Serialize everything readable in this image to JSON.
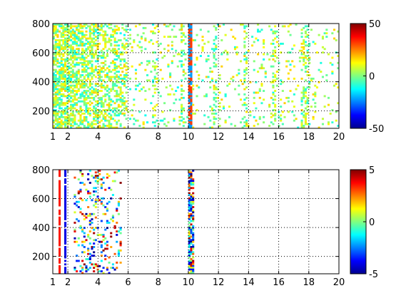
{
  "chart_data": [
    {
      "type": "heatmap",
      "title": "",
      "xlabel": "",
      "ylabel": "",
      "xlim": [
        1,
        20
      ],
      "ylim": [
        80,
        800
      ],
      "grid": true,
      "x_ticks": [
        "1",
        "2",
        "4",
        "6",
        "8",
        "10",
        "12",
        "14",
        "16",
        "18",
        "20"
      ],
      "y_ticks": [
        "200",
        "400",
        "600",
        "800"
      ],
      "colorbar": {
        "range": [
          -50,
          50
        ],
        "ticks": [
          "50",
          "0",
          "-50"
        ]
      },
      "dense_region_x": [
        1,
        6
      ],
      "strong_band_x": 10.1
    },
    {
      "type": "heatmap",
      "title": "",
      "xlabel": "",
      "ylabel": "",
      "xlim": [
        1,
        20
      ],
      "ylim": [
        80,
        800
      ],
      "grid": true,
      "x_ticks": [
        "1",
        "2",
        "4",
        "6",
        "8",
        "10",
        "12",
        "14",
        "16",
        "18",
        "20"
      ],
      "y_ticks": [
        "200",
        "400",
        "600",
        "800"
      ],
      "colorbar": {
        "range": [
          -5,
          5
        ],
        "ticks": [
          "5",
          "0",
          "-5"
        ]
      },
      "dense_region_x": [
        2.4,
        5.6
      ],
      "strong_band_x": 10.2
    }
  ],
  "colors": {
    "colormap": "jet",
    "axis": "#000000",
    "grid": "#000000"
  }
}
